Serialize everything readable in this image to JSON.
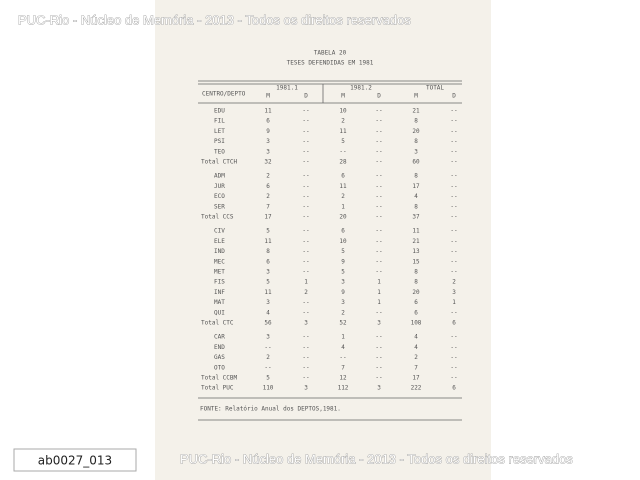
{
  "watermark_top": "PUC-Rio - Núcleo de Memória - 2013 - Todos os direitos reservados",
  "watermark_bottom": "PUC-Rio - Núcleo de Memória - 2013 - Todos os direitos reservados",
  "document_id": "ab0027_013",
  "table": {
    "title": "TABELA 20",
    "subtitle": "TESES DEFENDIDAS EM 1981",
    "row_header": "CENTRO/DEPTO",
    "column_groups": [
      "1981.1",
      "1981.2",
      "TOTAL"
    ],
    "subheaders": [
      "M",
      "D",
      "M",
      "D",
      "M",
      "D"
    ],
    "groups": [
      {
        "rows": [
          [
            "EDU",
            "11",
            "--",
            "10",
            "--",
            "21",
            "--"
          ],
          [
            "FIL",
            "6",
            "--",
            "2",
            "--",
            "8",
            "--"
          ],
          [
            "LET",
            "9",
            "--",
            "11",
            "--",
            "20",
            "--"
          ],
          [
            "PSI",
            "3",
            "--",
            "5",
            "--",
            "8",
            "--"
          ],
          [
            "TEO",
            "3",
            "--",
            "--",
            "--",
            "3",
            "--"
          ],
          [
            "Total CTCH",
            "32",
            "--",
            "28",
            "--",
            "60",
            "--"
          ]
        ]
      },
      {
        "rows": [
          [
            "ADM",
            "2",
            "--",
            "6",
            "--",
            "8",
            "--"
          ],
          [
            "JUR",
            "6",
            "--",
            "11",
            "--",
            "17",
            "--"
          ],
          [
            "ECO",
            "2",
            "--",
            "2",
            "--",
            "4",
            "--"
          ],
          [
            "SER",
            "7",
            "--",
            "1",
            "--",
            "8",
            "--"
          ],
          [
            "Total CCS",
            "17",
            "--",
            "20",
            "--",
            "37",
            "--"
          ]
        ]
      },
      {
        "rows": [
          [
            "CIV",
            "5",
            "--",
            "6",
            "--",
            "11",
            "--"
          ],
          [
            "ELE",
            "11",
            "--",
            "10",
            "--",
            "21",
            "--"
          ],
          [
            "IND",
            "8",
            "--",
            "5",
            "--",
            "13",
            "--"
          ],
          [
            "MEC",
            "6",
            "--",
            "9",
            "--",
            "15",
            "--"
          ],
          [
            "MET",
            "3",
            "--",
            "5",
            "--",
            "8",
            "--"
          ],
          [
            "FIS",
            "5",
            "1",
            "3",
            "1",
            "8",
            "2"
          ],
          [
            "INF",
            "11",
            "2",
            "9",
            "1",
            "20",
            "3"
          ],
          [
            "MAT",
            "3",
            "--",
            "3",
            "1",
            "6",
            "1"
          ],
          [
            "QUI",
            "4",
            "--",
            "2",
            "--",
            "6",
            "--"
          ],
          [
            "Total CTC",
            "56",
            "3",
            "52",
            "3",
            "108",
            "6"
          ]
        ]
      },
      {
        "rows": [
          [
            "CAR",
            "3",
            "--",
            "1",
            "--",
            "4",
            "--"
          ],
          [
            "END",
            "--",
            "--",
            "4",
            "--",
            "4",
            "--"
          ],
          [
            "GAS",
            "2",
            "--",
            "--",
            "--",
            "2",
            "--"
          ],
          [
            "OTO",
            "--",
            "--",
            "7",
            "--",
            "7",
            "--"
          ],
          [
            "Total CCBM",
            "5",
            "--",
            "12",
            "--",
            "17",
            "--"
          ],
          [
            "Total PUC",
            "110",
            "3",
            "112",
            "3",
            "222",
            "6"
          ]
        ]
      }
    ],
    "source": "FONTE: Relatório Anual dos DEPTOS,1981."
  }
}
